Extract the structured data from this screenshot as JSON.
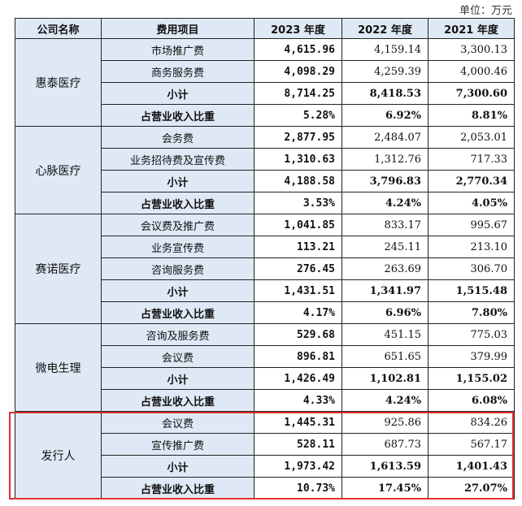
{
  "unit_label": "单位：万元",
  "headers": [
    "公司名称",
    "费用项目",
    "2023 年度",
    "2022 年度",
    "2021 年度"
  ],
  "groups": [
    {
      "company": "惠泰医疗",
      "rows": [
        {
          "item": "市场推广费",
          "v2023": "4,615.96",
          "v2022": "4,159.14",
          "v2021": "3,300.13"
        },
        {
          "item": "商务服务费",
          "v2023": "4,098.29",
          "v2022": "4,259.39",
          "v2021": "4,000.46"
        },
        {
          "item": "小计",
          "v2023": "8,714.25",
          "v2022": "8,418.53",
          "v2021": "7,300.60",
          "subtotal": true
        },
        {
          "item": "占营业收入比重",
          "v2023": "5.28%",
          "v2022": "6.92%",
          "v2021": "8.81%",
          "ratio": true
        }
      ]
    },
    {
      "company": "心脉医疗",
      "rows": [
        {
          "item": "会务费",
          "v2023": "2,877.95",
          "v2022": "2,484.07",
          "v2021": "2,053.01"
        },
        {
          "item": "业务招待费及宣传费",
          "v2023": "1,310.63",
          "v2022": "1,312.76",
          "v2021": "717.33"
        },
        {
          "item": "小计",
          "v2023": "4,188.58",
          "v2022": "3,796.83",
          "v2021": "2,770.34",
          "subtotal": true
        },
        {
          "item": "占营业收入比重",
          "v2023": "3.53%",
          "v2022": "4.24%",
          "v2021": "4.05%",
          "ratio": true
        }
      ]
    },
    {
      "company": "赛诺医疗",
      "rows": [
        {
          "item": "会议费及推广费",
          "v2023": "1,041.85",
          "v2022": "833.17",
          "v2021": "995.67"
        },
        {
          "item": "业务宣传费",
          "v2023": "113.21",
          "v2022": "245.11",
          "v2021": "213.10"
        },
        {
          "item": "咨询服务费",
          "v2023": "276.45",
          "v2022": "263.69",
          "v2021": "306.70"
        },
        {
          "item": "小计",
          "v2023": "1,431.51",
          "v2022": "1,341.97",
          "v2021": "1,515.48",
          "subtotal": true
        },
        {
          "item": "占营业收入比重",
          "v2023": "4.17%",
          "v2022": "6.96%",
          "v2021": "7.80%",
          "ratio": true
        }
      ]
    },
    {
      "company": "微电生理",
      "rows": [
        {
          "item": "咨询及服务费",
          "v2023": "529.68",
          "v2022": "451.15",
          "v2021": "775.03"
        },
        {
          "item": "会议费",
          "v2023": "896.81",
          "v2022": "651.65",
          "v2021": "379.99"
        },
        {
          "item": "小计",
          "v2023": "1,426.49",
          "v2022": "1,102.81",
          "v2021": "1,155.02",
          "subtotal": true
        },
        {
          "item": "占营业收入比重",
          "v2023": "4.33%",
          "v2022": "4.24%",
          "v2021": "6.08%",
          "ratio": true
        }
      ]
    },
    {
      "company": "发行人",
      "rows": [
        {
          "item": "会议费",
          "v2023": "1,445.31",
          "v2022": "925.86",
          "v2021": "834.26"
        },
        {
          "item": "宣传推广费",
          "v2023": "528.11",
          "v2022": "687.73",
          "v2021": "567.17"
        },
        {
          "item": "小计",
          "v2023": "1,973.42",
          "v2022": "1,613.59",
          "v2021": "1,401.43",
          "subtotal": true
        },
        {
          "item": "占营业收入比重",
          "v2023": "10.73%",
          "v2022": "17.45%",
          "v2021": "27.07%",
          "ratio": true
        }
      ]
    }
  ],
  "highlight_color": "#e03030"
}
